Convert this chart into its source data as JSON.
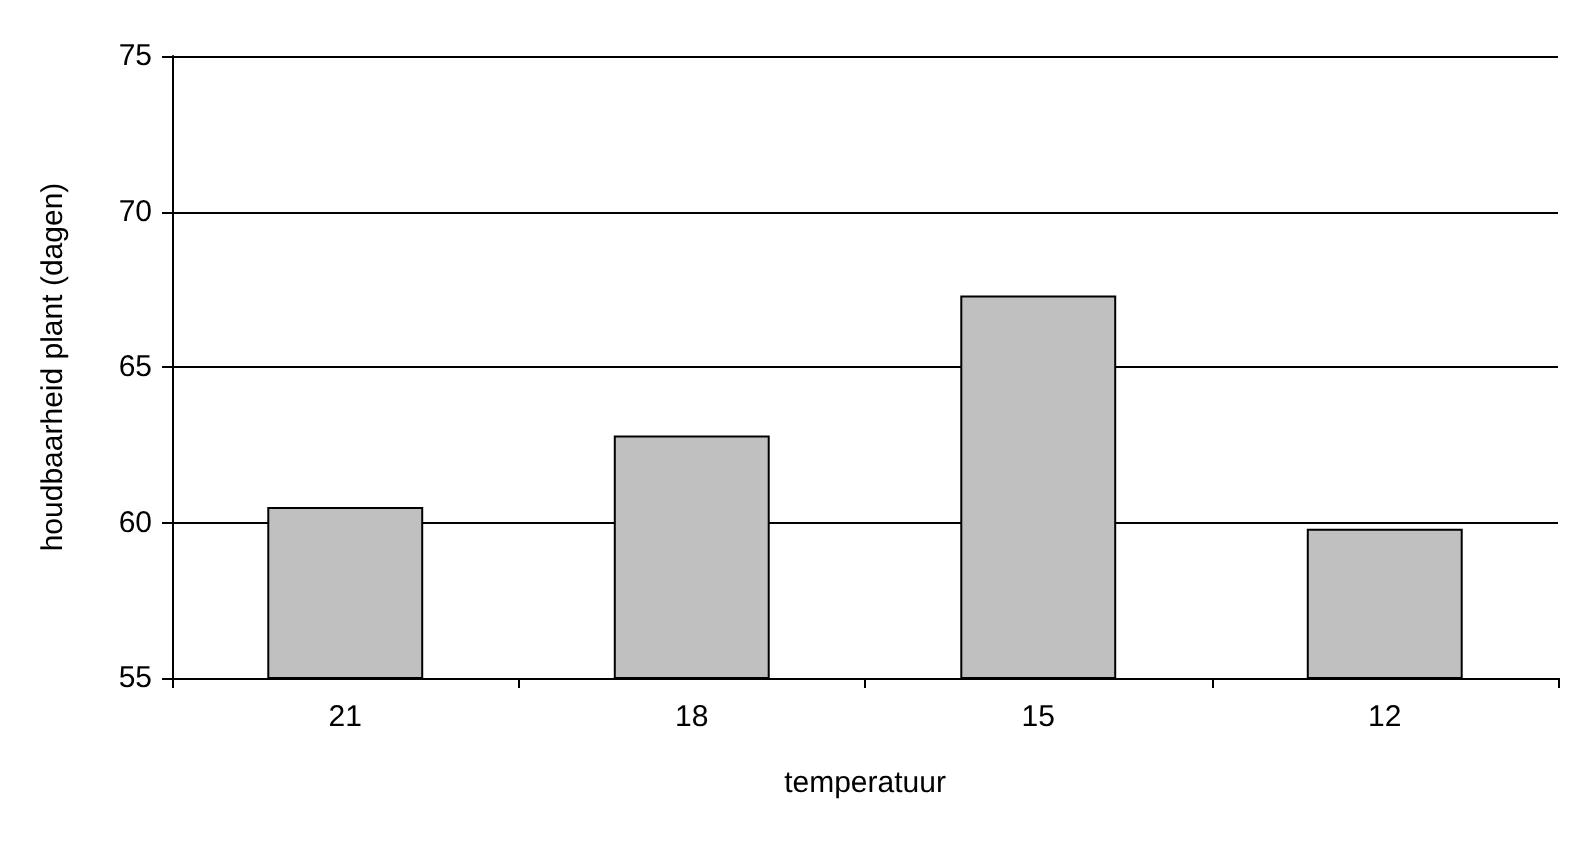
{
  "chart_data": {
    "type": "bar",
    "xlabel": "temperatuur",
    "ylabel": "houdbaarheid plant (dagen)",
    "categories": [
      "21",
      "18",
      "15",
      "12"
    ],
    "values": [
      60.5,
      62.8,
      67.3,
      59.8
    ],
    "color": "#c0c0c0",
    "ylim": [
      55,
      75
    ],
    "yticks": [
      55,
      60,
      65,
      70,
      75
    ],
    "grid": "y"
  }
}
